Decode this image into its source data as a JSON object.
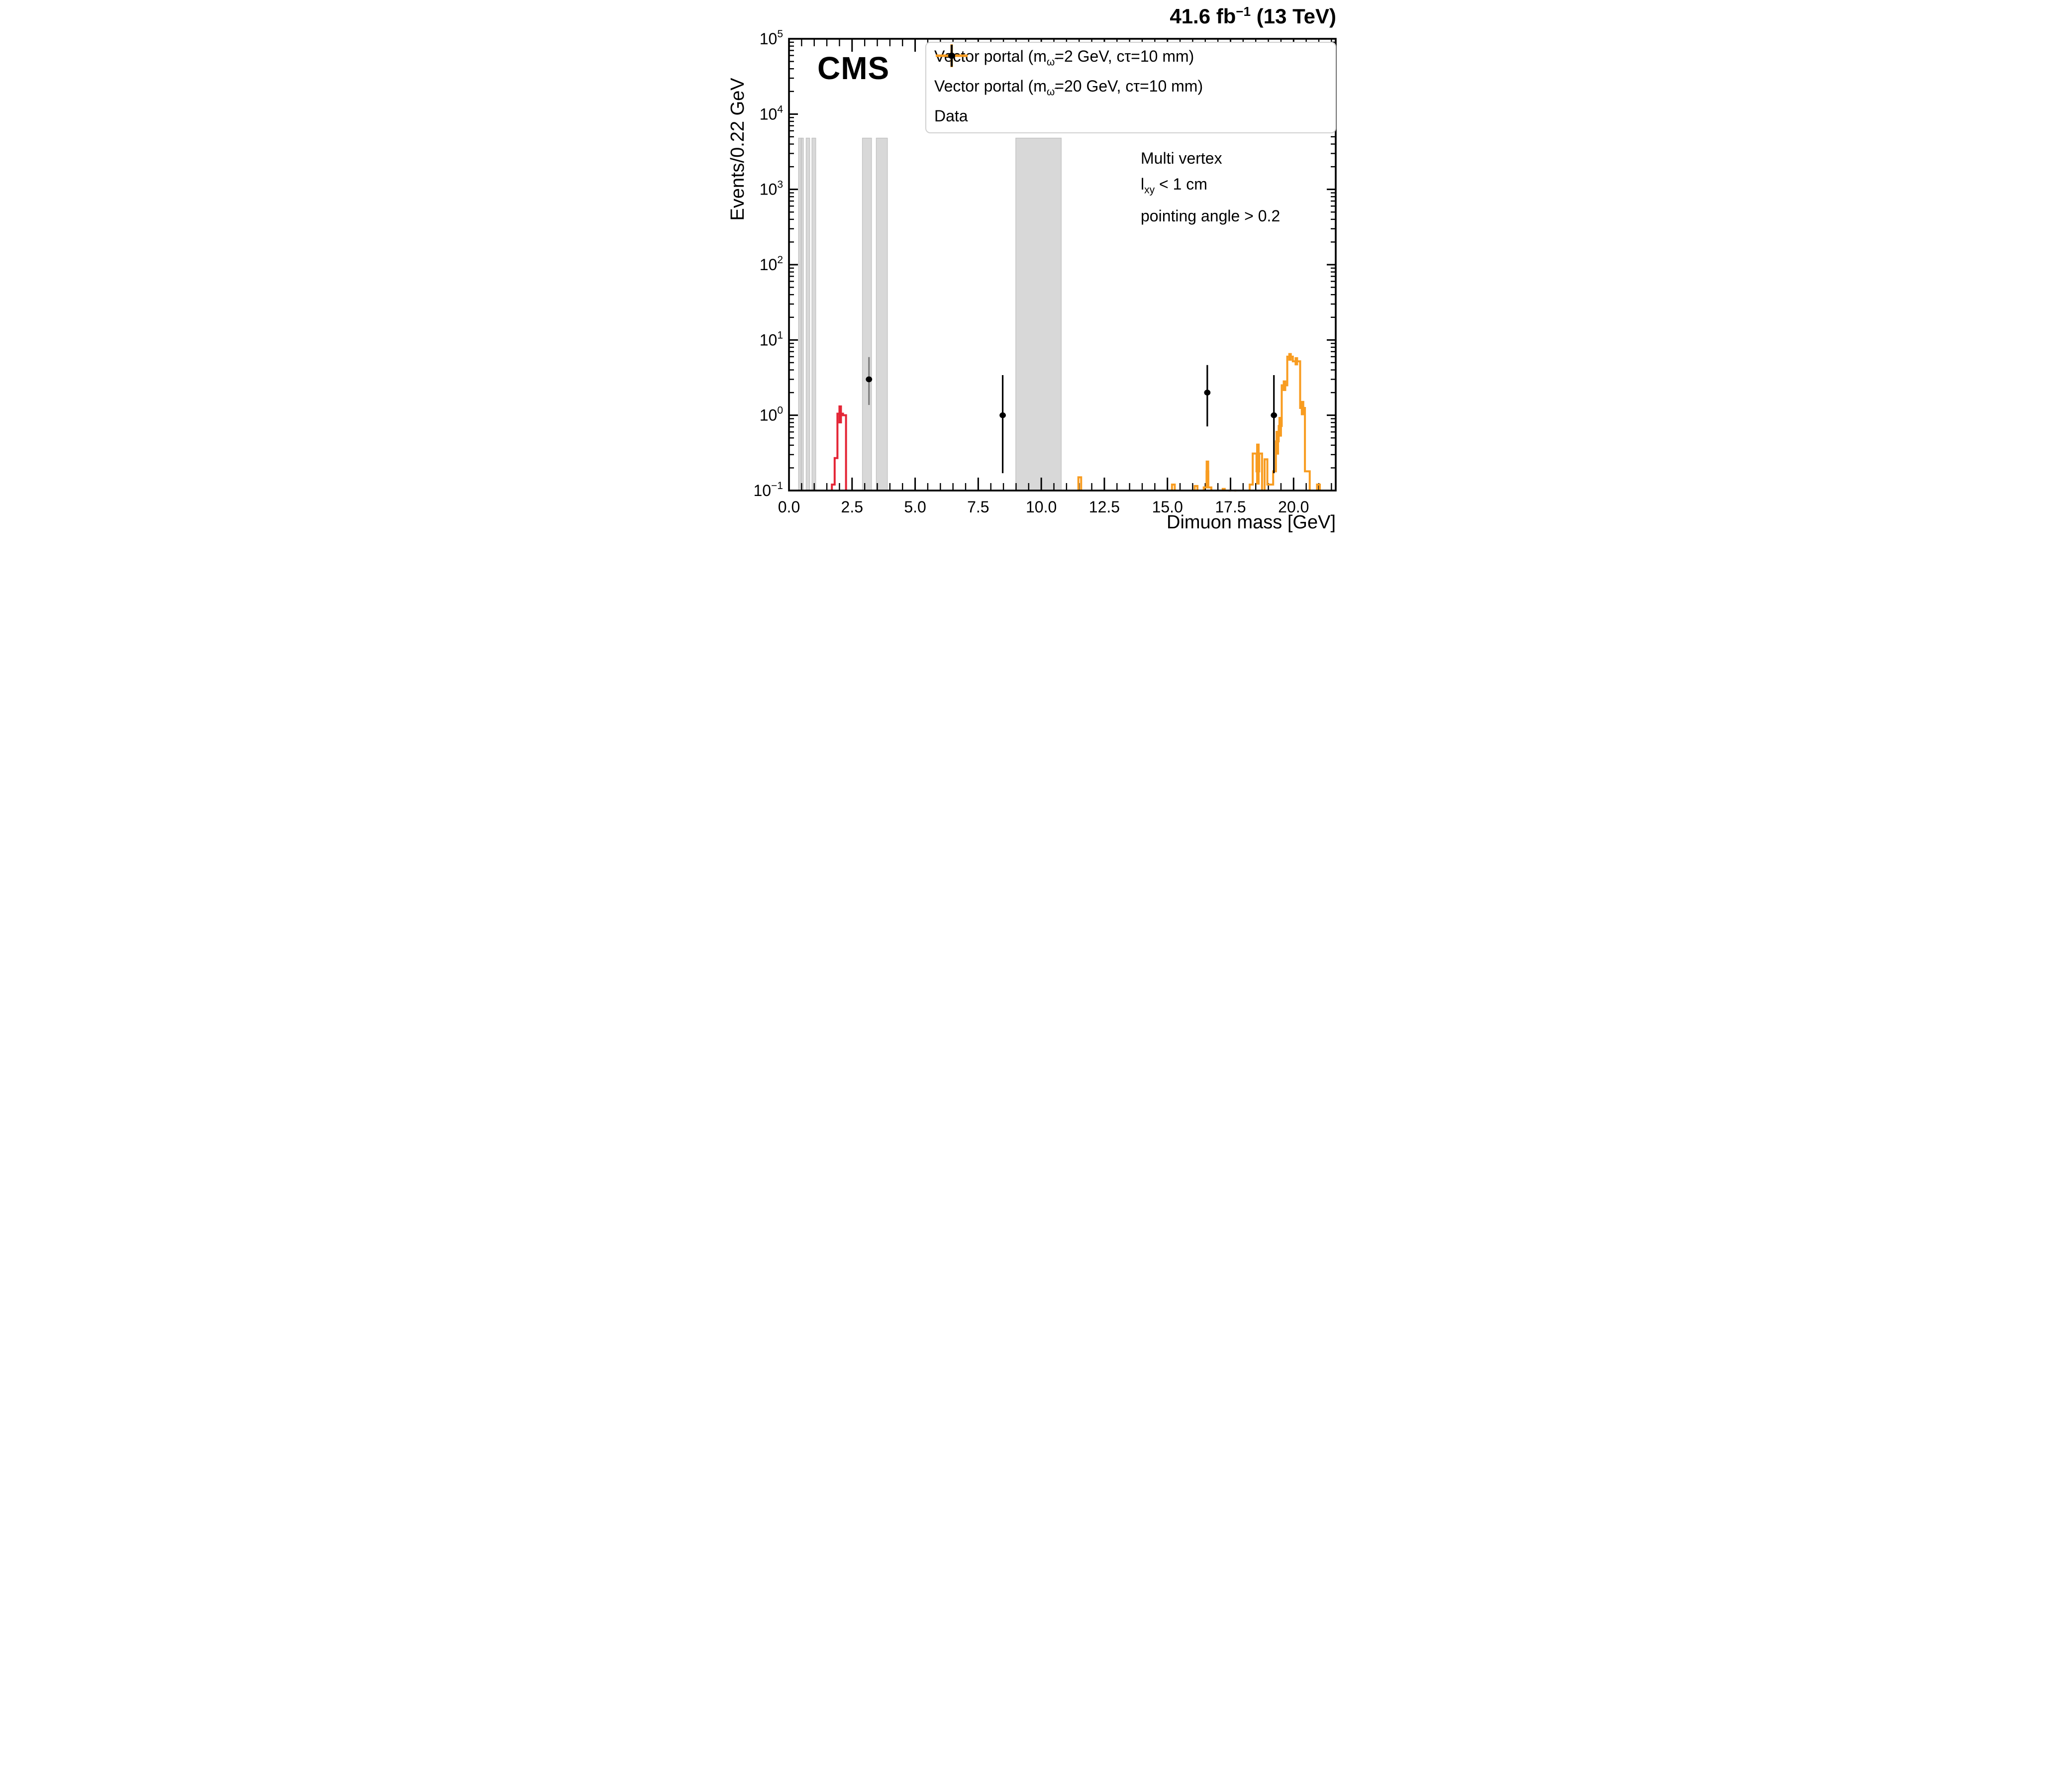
{
  "figure": {
    "lumi": {
      "prefix": "41.6 fb",
      "sup": "−1",
      "suffix": " (13 TeV)"
    },
    "experiment_label": "CMS",
    "selection_lines": {
      "line1": "Multi vertex",
      "line2_pre": "l",
      "line2_sub": "xy",
      "line2_post": " < 1 cm",
      "line3": "pointing angle > 0.2"
    }
  },
  "legend": {
    "entries": [
      {
        "marker": "cross",
        "color": "#e42536",
        "label_pre": "Vector portal (m",
        "label_sub": "ω̃",
        "label_post": "=2 GeV, cτ=10 mm)"
      },
      {
        "marker": "cross",
        "color": "#f89c20",
        "label_pre": "Vector portal (m",
        "label_sub": "ω̃",
        "label_post": "=20 GeV, cτ=10 mm)"
      },
      {
        "marker": "point",
        "color": "#000000",
        "label_pre": "Data",
        "label_sub": "",
        "label_post": ""
      }
    ]
  },
  "chart_data": {
    "type": "step-histogram+scatter",
    "title": "41.6 fb⁻¹ (13 TeV)",
    "xlabel": "Dimuon mass [GeV]",
    "ylabel": "Events/0.22 GeV",
    "xlim": [
      0,
      21.67
    ],
    "ylim": [
      0.1,
      100000
    ],
    "yscale": "log",
    "grid": false,
    "legend_position": "top-right",
    "bin_width_gev": 0.22,
    "x_major_ticks": [
      0,
      2.5,
      5,
      7.5,
      10,
      12.5,
      15,
      17.5,
      20
    ],
    "x_major_tick_labels": [
      "0.0",
      "2.5",
      "5.0",
      "7.5",
      "10.0",
      "12.5",
      "15.0",
      "17.5",
      "20.0"
    ],
    "x_minor_tick_step": 0.5,
    "y_decade_labels": [
      "−1",
      "0",
      "1",
      "2",
      "3",
      "4",
      "5"
    ],
    "veto_bands": {
      "color": "#d8d8d8",
      "edge_color": "#c2c2c2",
      "top_value": 4800,
      "ranges": [
        [
          0.38,
          0.48
        ],
        [
          0.49,
          0.57
        ],
        [
          0.68,
          0.82
        ],
        [
          0.91,
          1.06
        ],
        [
          2.91,
          3.27
        ],
        [
          3.46,
          3.9
        ],
        [
          8.99,
          10.79
        ]
      ]
    },
    "series": [
      {
        "name": "Vector portal (m_omega-tilde = 2 GeV, c-tau = 10 mm)",
        "type": "step_histogram",
        "color": "#e42536",
        "bins": [
          [
            1.7,
            1.81,
            0.12
          ],
          [
            1.81,
            1.92,
            0.27
          ],
          [
            1.92,
            2.14,
            1.05
          ],
          [
            2.14,
            2.26,
            1.0
          ]
        ],
        "error_bars": [
          [
            2.03,
            0.78,
            1.35
          ]
        ]
      },
      {
        "name": "Vector portal (m_omega-tilde = 20 GeV, c-tau = 10 mm)",
        "type": "step_histogram",
        "color": "#f89c20",
        "bins": [
          [
            11.47,
            11.58,
            0.15
          ],
          [
            15.18,
            15.29,
            0.12
          ],
          [
            16.08,
            16.19,
            0.115
          ],
          [
            16.44,
            16.55,
            0.11
          ],
          [
            16.55,
            16.62,
            0.18
          ],
          [
            16.62,
            16.74,
            0.11
          ],
          [
            17.19,
            17.27,
            0.105
          ],
          [
            17.42,
            17.51,
            0.1
          ],
          [
            17.65,
            17.73,
            0.1
          ],
          [
            18.26,
            18.38,
            0.12
          ],
          [
            18.38,
            18.53,
            0.31
          ],
          [
            18.53,
            18.64,
            0.18
          ],
          [
            18.64,
            18.75,
            0.31
          ],
          [
            18.85,
            18.96,
            0.26
          ],
          [
            18.96,
            19.19,
            0.12
          ],
          [
            19.19,
            19.3,
            0.18
          ],
          [
            19.3,
            19.41,
            0.45
          ],
          [
            19.41,
            19.53,
            0.72
          ],
          [
            19.53,
            19.75,
            2.5
          ],
          [
            19.75,
            19.97,
            6.0
          ],
          [
            19.97,
            20.26,
            5.2
          ],
          [
            20.26,
            20.45,
            1.25
          ],
          [
            20.45,
            20.64,
            0.18
          ],
          [
            20.93,
            21.04,
            0.12
          ]
        ],
        "error_bars": [
          [
            16.585,
            0.12,
            0.25
          ],
          [
            18.585,
            0.12,
            0.42
          ],
          [
            19.355,
            0.3,
            0.62
          ],
          [
            19.47,
            0.52,
            0.95
          ],
          [
            19.64,
            2.1,
            2.9
          ],
          [
            19.86,
            5.3,
            6.7
          ],
          [
            20.11,
            4.6,
            5.9
          ],
          [
            20.355,
            1.0,
            1.55
          ]
        ]
      },
      {
        "name": "Data",
        "type": "scatter",
        "color": "#000000",
        "points": [
          {
            "x": 3.17,
            "y": 3,
            "lo": 1.37,
            "hi": 5.92,
            "bar_color": "#7d7d7d"
          },
          {
            "x": 8.47,
            "y": 1,
            "lo": 0.17,
            "hi": 3.41
          },
          {
            "x": 16.58,
            "y": 2,
            "lo": 0.71,
            "hi": 4.64
          },
          {
            "x": 19.22,
            "y": 1,
            "lo": 0.17,
            "hi": 3.41
          }
        ]
      }
    ]
  }
}
